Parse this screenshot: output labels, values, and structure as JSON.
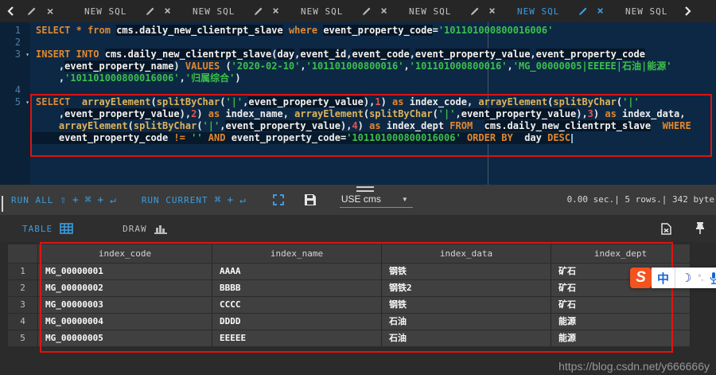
{
  "tabbar": {
    "items": [
      {
        "type": "chevron-left"
      },
      {
        "type": "icons-only"
      },
      {
        "type": "tab",
        "label": "NEW SQL",
        "active": false,
        "icons": true
      },
      {
        "type": "tab",
        "label": "NEW SQL",
        "active": false,
        "icons": true
      },
      {
        "type": "tab",
        "label": "NEW SQL",
        "active": false,
        "icons": true
      },
      {
        "type": "tab",
        "label": "NEW SQL",
        "active": false,
        "icons": true
      },
      {
        "type": "tab",
        "label": "NEW SQL",
        "active": true,
        "icons": true
      },
      {
        "type": "tab",
        "label": "NEW SQL",
        "active": false,
        "icons": false
      },
      {
        "type": "chevron-right"
      }
    ]
  },
  "editor": {
    "lines": [
      {
        "num": "1",
        "seg": [
          [
            "kw",
            "SELECT"
          ],
          [
            "pl",
            " "
          ],
          [
            "kw",
            "*"
          ],
          [
            "pl",
            " "
          ],
          [
            "kw",
            "from"
          ],
          [
            "pl",
            " "
          ],
          [
            "hl",
            "cms.daily_new_clientrpt_slave"
          ],
          [
            "pl",
            " "
          ],
          [
            "kw",
            "where"
          ],
          [
            "pl",
            " "
          ],
          [
            "hl",
            "event_property_code"
          ],
          [
            "pl",
            "="
          ],
          [
            "str",
            "'101101000800016006'"
          ]
        ]
      },
      {
        "num": "2",
        "seg": []
      },
      {
        "num": "3",
        "fold": true,
        "seg": [
          [
            "kw",
            "INSERT"
          ],
          [
            "pl",
            " "
          ],
          [
            "kw",
            "INTO"
          ],
          [
            "pl",
            " "
          ],
          [
            "hl",
            "cms.daily_new_clientrpt_slave"
          ],
          [
            "pl",
            "("
          ],
          [
            "hl",
            "day"
          ],
          [
            "pl",
            ","
          ],
          [
            "hl",
            "event_id"
          ],
          [
            "pl",
            ","
          ],
          [
            "hl",
            "event_code"
          ],
          [
            "pl",
            ","
          ],
          [
            "hl",
            "event_property_value"
          ],
          [
            "pl",
            ","
          ],
          [
            "hl",
            "event_property_code"
          ]
        ]
      },
      {
        "num": "",
        "seg": [
          [
            "pl",
            "    ,"
          ],
          [
            "hl",
            "event_property_name"
          ],
          [
            "pl",
            ") "
          ],
          [
            "kw",
            "VALUES"
          ],
          [
            "pl",
            " ("
          ],
          [
            "str",
            "'2020-02-10'"
          ],
          [
            "pl",
            ","
          ],
          [
            "str",
            "'101101000800016'"
          ],
          [
            "pl",
            ","
          ],
          [
            "str",
            "'101101000800016'"
          ],
          [
            "pl",
            ","
          ],
          [
            "str",
            "'MG_00000005|EEEEE|石油|能源'"
          ]
        ]
      },
      {
        "num": "",
        "seg": [
          [
            "pl",
            "    ,"
          ],
          [
            "str",
            "'101101000800016006'"
          ],
          [
            "pl",
            ","
          ],
          [
            "str",
            "'归属综合'"
          ],
          [
            "pl",
            ")"
          ]
        ]
      },
      {
        "num": "4",
        "seg": []
      },
      {
        "num": "5",
        "fold": true,
        "seg": [
          [
            "kw",
            "SELECT"
          ],
          [
            "pl",
            "  "
          ],
          [
            "fn",
            "arrayElement"
          ],
          [
            "pl",
            "("
          ],
          [
            "fn",
            "splitByChar"
          ],
          [
            "pl",
            "("
          ],
          [
            "str",
            "'|'"
          ],
          [
            "pl",
            ","
          ],
          [
            "hl",
            "event_property_value"
          ],
          [
            "pl",
            "),"
          ],
          [
            "num",
            "1"
          ],
          [
            "pl",
            ") "
          ],
          [
            "kw",
            "as"
          ],
          [
            "pl",
            " index_code, "
          ],
          [
            "fn",
            "arrayElement"
          ],
          [
            "pl",
            "("
          ],
          [
            "fn",
            "splitByChar"
          ],
          [
            "pl",
            "("
          ],
          [
            "str",
            "'|'"
          ]
        ]
      },
      {
        "num": "",
        "seg": [
          [
            "pl",
            "    ,"
          ],
          [
            "hl",
            "event_property_value"
          ],
          [
            "pl",
            "),"
          ],
          [
            "num",
            "2"
          ],
          [
            "pl",
            ") "
          ],
          [
            "kw",
            "as"
          ],
          [
            "pl",
            " index_name, "
          ],
          [
            "fn",
            "arrayElement"
          ],
          [
            "pl",
            "("
          ],
          [
            "fn",
            "splitByChar"
          ],
          [
            "pl",
            "("
          ],
          [
            "str",
            "'|'"
          ],
          [
            "pl",
            ","
          ],
          [
            "hl",
            "event_property_value"
          ],
          [
            "pl",
            "),"
          ],
          [
            "num",
            "3"
          ],
          [
            "pl",
            ") "
          ],
          [
            "kw",
            "as"
          ],
          [
            "pl",
            " index_data,"
          ]
        ]
      },
      {
        "num": "",
        "seg": [
          [
            "pl",
            "    "
          ],
          [
            "fn",
            "arrayElement"
          ],
          [
            "pl",
            "("
          ],
          [
            "fn",
            "splitByChar"
          ],
          [
            "pl",
            "("
          ],
          [
            "str",
            "'|'"
          ],
          [
            "pl",
            ","
          ],
          [
            "hl",
            "event_property_value"
          ],
          [
            "pl",
            "),"
          ],
          [
            "num",
            "4"
          ],
          [
            "pl",
            ") "
          ],
          [
            "kw",
            "as"
          ],
          [
            "pl",
            " index_dept "
          ],
          [
            "kw",
            "FROM"
          ],
          [
            "pl",
            "  "
          ],
          [
            "hl",
            "cms.daily_new_clientrpt_slave"
          ],
          [
            "pl",
            "  "
          ],
          [
            "kw",
            "WHERE"
          ]
        ]
      },
      {
        "num": "",
        "bg": true,
        "cursor": true,
        "seg": [
          [
            "pl",
            "    "
          ],
          [
            "hl",
            "event_property_code"
          ],
          [
            "pl",
            " "
          ],
          [
            "kw",
            "!="
          ],
          [
            "pl",
            " "
          ],
          [
            "str",
            "''"
          ],
          [
            "pl",
            " "
          ],
          [
            "kw",
            "AND"
          ],
          [
            "pl",
            " event_property_code="
          ],
          [
            "str",
            "'101101000800016006'"
          ],
          [
            "pl",
            " "
          ],
          [
            "kw",
            "ORDER"
          ],
          [
            "pl",
            " "
          ],
          [
            "kw",
            "BY"
          ],
          [
            "pl",
            "  day "
          ],
          [
            "kw",
            "DESC"
          ]
        ]
      }
    ]
  },
  "toolbar": {
    "run_all_label": "RUN ALL",
    "run_all_keys": "⇧ + ⌘ + ↵",
    "run_current_label": "RUN CURRENT",
    "run_current_keys": "⌘ + ↵",
    "use_label": "USE cms",
    "stats": "0.00 sec.| 5 rows.| 342 byte"
  },
  "resultbar": {
    "table_label": "TABLE",
    "draw_label": "DRAW"
  },
  "results_table": {
    "columns": [
      "index_code",
      "index_name",
      "index_data",
      "index_dept"
    ],
    "rows": [
      {
        "n": "1",
        "cells": [
          "MG_00000001",
          "AAAA",
          "钢铁",
          "矿石"
        ]
      },
      {
        "n": "2",
        "cells": [
          "MG_00000002",
          "BBBB",
          "钢铁2",
          "矿石"
        ]
      },
      {
        "n": "3",
        "cells": [
          "MG_00000003",
          "CCCC",
          "钢铁",
          "矿石"
        ]
      },
      {
        "n": "4",
        "cells": [
          "MG_00000004",
          "DDDD",
          "石油",
          "能源"
        ]
      },
      {
        "n": "5",
        "cells": [
          "MG_00000005",
          "EEEEE",
          "石油",
          "能源"
        ]
      }
    ]
  },
  "ime_bar": {
    "logo": "S",
    "lang": "中",
    "moon": "☽",
    "dots": "°,"
  },
  "watermark": "https://blog.csdn.net/y666666y",
  "colors": {
    "accent_blue": "#3b9de0",
    "keyword_orange": "#e2882f",
    "function_yellow": "#ddb35b",
    "string_green": "#3cbf4b",
    "number_red": "#e25555",
    "annotation_red": "#de1412",
    "editor_bg": "#0d2844",
    "ime_orange": "#f4521e"
  }
}
